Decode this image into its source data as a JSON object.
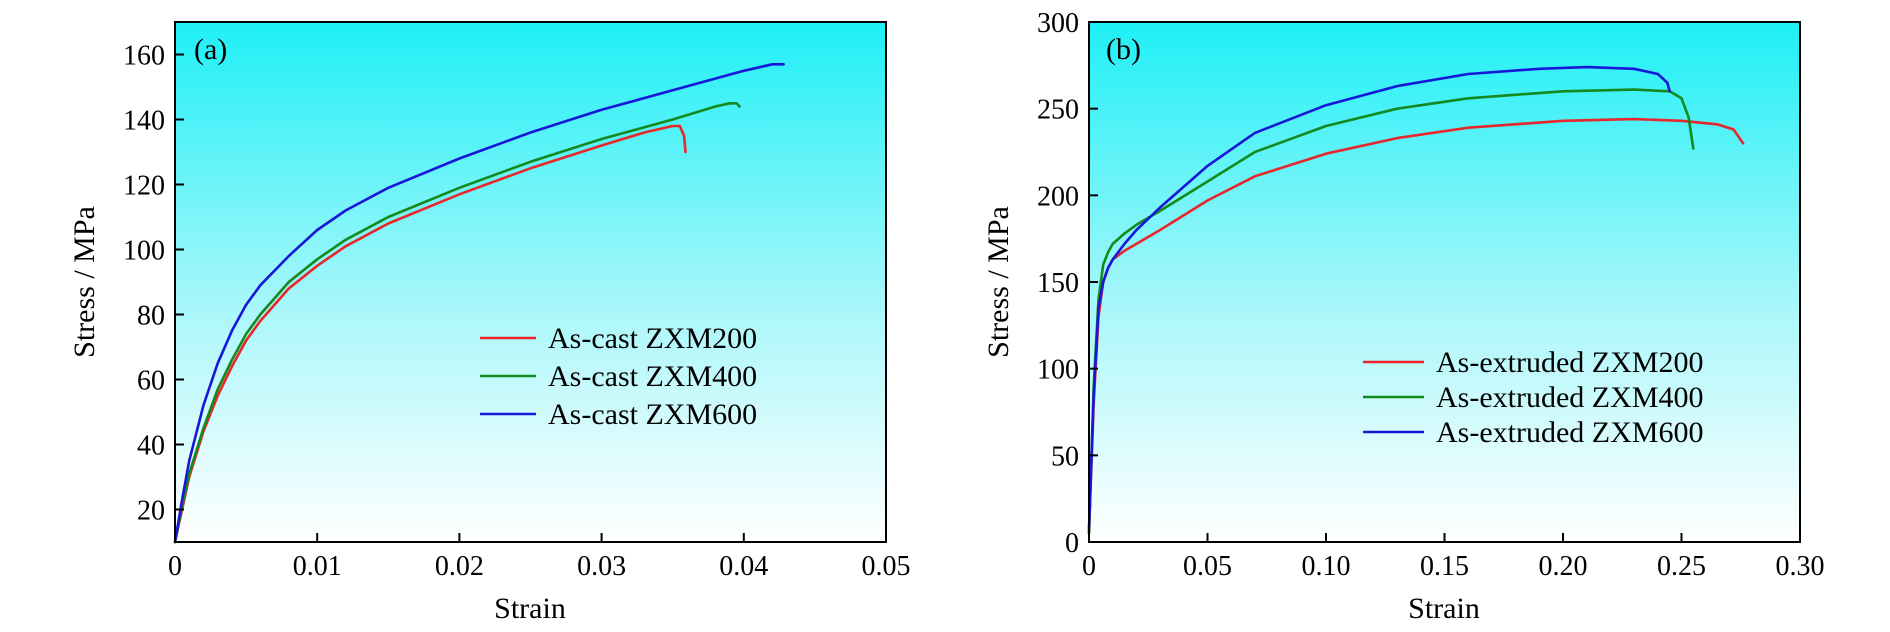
{
  "chart_data": [
    {
      "type": "line",
      "panel_label": "(a)",
      "xlabel": "Strain",
      "ylabel": "Stress / MPa",
      "xlim": [
        0,
        0.05
      ],
      "ylim": [
        10,
        170
      ],
      "xticks": [
        0,
        0.01,
        0.02,
        0.03,
        0.04,
        0.05
      ],
      "xtick_labels": [
        "0",
        "0.01",
        "0.02",
        "0.03",
        "0.04",
        "0.05"
      ],
      "yticks": [
        20,
        40,
        60,
        80,
        100,
        120,
        140,
        160
      ],
      "ytick_labels": [
        "20",
        "40",
        "60",
        "80",
        "100",
        "120",
        "140",
        "160"
      ],
      "grid": false,
      "background": "cyan-to-white vertical gradient",
      "legend_position": "center-right",
      "series": [
        {
          "name": "As-cast ZXM200",
          "color": "#e8262b",
          "x": [
            0,
            0.0005,
            0.001,
            0.002,
            0.003,
            0.004,
            0.005,
            0.006,
            0.008,
            0.01,
            0.012,
            0.015,
            0.02,
            0.025,
            0.03,
            0.033,
            0.035,
            0.0355,
            0.0358,
            0.0359
          ],
          "y": [
            10,
            20,
            30,
            44,
            55,
            64,
            72,
            78,
            88,
            95,
            101,
            108,
            117,
            125,
            132,
            136,
            138,
            138,
            135,
            130
          ]
        },
        {
          "name": "As-cast ZXM400",
          "color": "#138a1e",
          "x": [
            0,
            0.0005,
            0.001,
            0.002,
            0.003,
            0.004,
            0.005,
            0.006,
            0.008,
            0.01,
            0.012,
            0.015,
            0.02,
            0.025,
            0.03,
            0.035,
            0.038,
            0.039,
            0.0395,
            0.0397
          ],
          "y": [
            10,
            21,
            31,
            45,
            57,
            66,
            74,
            80,
            90,
            97,
            103,
            110,
            119,
            127,
            134,
            140,
            144,
            145,
            145,
            144
          ]
        },
        {
          "name": "As-cast ZXM600",
          "color": "#1717d9",
          "x": [
            0,
            0.0005,
            0.001,
            0.002,
            0.003,
            0.004,
            0.005,
            0.006,
            0.008,
            0.01,
            0.012,
            0.015,
            0.02,
            0.025,
            0.03,
            0.035,
            0.04,
            0.042,
            0.0425,
            0.0428
          ],
          "y": [
            10,
            23,
            35,
            52,
            65,
            75,
            83,
            89,
            98,
            106,
            112,
            119,
            128,
            136,
            143,
            149,
            155,
            157,
            157,
            157
          ]
        }
      ]
    },
    {
      "type": "line",
      "panel_label": "(b)",
      "xlabel": "Strain",
      "ylabel": "Stress / MPa",
      "xlim": [
        0,
        0.3
      ],
      "ylim": [
        0,
        300
      ],
      "xticks": [
        0,
        0.05,
        0.1,
        0.15,
        0.2,
        0.25,
        0.3
      ],
      "xtick_labels": [
        "0",
        "0.05",
        "0.10",
        "0.15",
        "0.20",
        "0.25",
        "0.30"
      ],
      "yticks": [
        0,
        50,
        100,
        150,
        200,
        250,
        300
      ],
      "ytick_labels": [
        "0",
        "50",
        "100",
        "150",
        "200",
        "250",
        "300"
      ],
      "grid": false,
      "background": "cyan-to-white vertical gradient",
      "legend_position": "lower-right",
      "series": [
        {
          "name": "As-extruded ZXM200",
          "color": "#e8262b",
          "x": [
            0,
            0.002,
            0.004,
            0.006,
            0.008,
            0.01,
            0.015,
            0.02,
            0.03,
            0.05,
            0.07,
            0.1,
            0.13,
            0.16,
            0.2,
            0.23,
            0.25,
            0.265,
            0.272,
            0.276
          ],
          "y": [
            5,
            80,
            130,
            150,
            158,
            163,
            168,
            172,
            180,
            197,
            211,
            224,
            233,
            239,
            243,
            244,
            243,
            241,
            238,
            230
          ]
        },
        {
          "name": "As-extruded ZXM400",
          "color": "#138a1e",
          "x": [
            0,
            0.002,
            0.004,
            0.006,
            0.008,
            0.01,
            0.015,
            0.02,
            0.03,
            0.05,
            0.07,
            0.1,
            0.13,
            0.16,
            0.2,
            0.23,
            0.245,
            0.25,
            0.253,
            0.255
          ],
          "y": [
            5,
            90,
            140,
            160,
            167,
            172,
            178,
            183,
            191,
            208,
            225,
            240,
            250,
            256,
            260,
            261,
            260,
            256,
            245,
            227
          ]
        },
        {
          "name": "As-extruded ZXM600",
          "color": "#1717d9",
          "x": [
            0,
            0.002,
            0.004,
            0.006,
            0.008,
            0.01,
            0.015,
            0.02,
            0.03,
            0.05,
            0.07,
            0.1,
            0.13,
            0.16,
            0.19,
            0.21,
            0.23,
            0.24,
            0.244,
            0.245
          ],
          "y": [
            8,
            85,
            135,
            150,
            158,
            163,
            172,
            180,
            193,
            217,
            236,
            252,
            263,
            270,
            273,
            274,
            273,
            270,
            265,
            260
          ]
        }
      ]
    }
  ]
}
